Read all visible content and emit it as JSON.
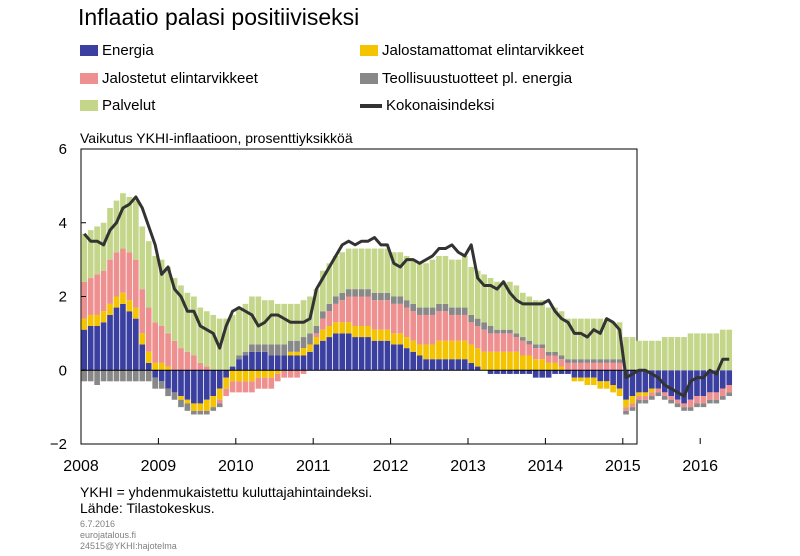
{
  "chart_data": {
    "type": "bar",
    "title": "Inflaatio palasi positiiviseksi",
    "subtitle": "Vaikutus YKHI-inflaatioon, prosenttiyksikköä",
    "ylim": [
      -2,
      6
    ],
    "yticks": [
      "6",
      "4",
      "2",
      "0",
      "−2"
    ],
    "xticks": [
      "2008",
      "2009",
      "2010",
      "2011",
      "2012",
      "2013",
      "2014",
      "2015",
      "2016"
    ],
    "months": [
      "2008-01",
      "2008-02",
      "2008-03",
      "2008-04",
      "2008-05",
      "2008-06",
      "2008-07",
      "2008-08",
      "2008-09",
      "2008-10",
      "2008-11",
      "2008-12",
      "2009-01",
      "2009-02",
      "2009-03",
      "2009-04",
      "2009-05",
      "2009-06",
      "2009-07",
      "2009-08",
      "2009-09",
      "2009-10",
      "2009-11",
      "2009-12",
      "2010-01",
      "2010-02",
      "2010-03",
      "2010-04",
      "2010-05",
      "2010-06",
      "2010-07",
      "2010-08",
      "2010-09",
      "2010-10",
      "2010-11",
      "2010-12",
      "2011-01",
      "2011-02",
      "2011-03",
      "2011-04",
      "2011-05",
      "2011-06",
      "2011-07",
      "2011-08",
      "2011-09",
      "2011-10",
      "2011-11",
      "2011-12",
      "2012-01",
      "2012-02",
      "2012-03",
      "2012-04",
      "2012-05",
      "2012-06",
      "2012-07",
      "2012-08",
      "2012-09",
      "2012-10",
      "2012-11",
      "2012-12",
      "2013-01",
      "2013-02",
      "2013-03",
      "2013-04",
      "2013-05",
      "2013-06",
      "2013-07",
      "2013-08",
      "2013-09",
      "2013-10",
      "2013-11",
      "2013-12",
      "2014-01",
      "2014-02",
      "2014-03",
      "2014-04",
      "2014-05",
      "2014-06",
      "2014-07",
      "2014-08",
      "2014-09",
      "2014-10",
      "2014-11",
      "2014-12",
      "2015-01",
      "2015-02",
      "2015-03",
      "2015-04",
      "2015-05",
      "2015-06",
      "2015-07",
      "2015-08",
      "2015-09",
      "2015-10",
      "2015-11",
      "2015-12",
      "2016-01",
      "2016-02",
      "2016-03",
      "2016-04",
      "2016-05"
    ],
    "series": [
      {
        "name": "Energia",
        "color": "#3b3fa0",
        "values": [
          1.1,
          1.2,
          1.2,
          1.3,
          1.5,
          1.7,
          1.8,
          1.6,
          1.4,
          0.7,
          0.2,
          -0.2,
          -0.3,
          -0.5,
          -0.6,
          -0.7,
          -0.8,
          -0.9,
          -0.9,
          -0.8,
          -0.7,
          -0.5,
          -0.2,
          0.1,
          0.3,
          0.4,
          0.5,
          0.5,
          0.5,
          0.4,
          0.4,
          0.4,
          0.4,
          0.4,
          0.4,
          0.5,
          0.7,
          0.8,
          0.9,
          1.0,
          1.0,
          1.0,
          0.9,
          0.9,
          0.9,
          0.8,
          0.8,
          0.8,
          0.7,
          0.7,
          0.6,
          0.5,
          0.4,
          0.3,
          0.3,
          0.3,
          0.3,
          0.3,
          0.3,
          0.3,
          0.2,
          0.1,
          0.0,
          -0.1,
          -0.1,
          -0.1,
          -0.1,
          -0.1,
          -0.1,
          -0.1,
          -0.2,
          -0.2,
          -0.2,
          -0.1,
          -0.1,
          -0.1,
          -0.2,
          -0.2,
          -0.2,
          -0.2,
          -0.3,
          -0.3,
          -0.4,
          -0.5,
          -0.8,
          -0.7,
          -0.6,
          -0.6,
          -0.5,
          -0.5,
          -0.6,
          -0.7,
          -0.8,
          -0.9,
          -0.8,
          -0.7,
          -0.7,
          -0.6,
          -0.6,
          -0.5,
          -0.4
        ]
      },
      {
        "name": "Jalostamattomat elintarvikkeet",
        "color": "#f5c400",
        "values": [
          0.3,
          0.3,
          0.3,
          0.3,
          0.3,
          0.3,
          0.3,
          0.3,
          0.3,
          0.3,
          0.3,
          0.2,
          0.2,
          0.1,
          0.0,
          -0.1,
          -0.1,
          -0.2,
          -0.2,
          -0.3,
          -0.3,
          -0.3,
          -0.3,
          -0.3,
          -0.3,
          -0.3,
          -0.3,
          -0.2,
          -0.2,
          -0.2,
          -0.1,
          0.0,
          0.1,
          0.1,
          0.2,
          0.2,
          0.2,
          0.3,
          0.3,
          0.3,
          0.3,
          0.3,
          0.3,
          0.3,
          0.3,
          0.3,
          0.3,
          0.3,
          0.3,
          0.3,
          0.3,
          0.3,
          0.3,
          0.4,
          0.4,
          0.5,
          0.5,
          0.5,
          0.5,
          0.5,
          0.5,
          0.5,
          0.5,
          0.5,
          0.5,
          0.5,
          0.5,
          0.5,
          0.4,
          0.4,
          0.3,
          0.3,
          0.2,
          0.2,
          0.1,
          0.0,
          -0.1,
          -0.1,
          -0.2,
          -0.2,
          -0.2,
          -0.2,
          -0.2,
          -0.2,
          -0.2,
          -0.2,
          -0.1,
          -0.1,
          -0.1,
          0.0,
          0.0,
          0.0,
          0.0,
          0.0,
          0.0,
          0.0,
          0.0,
          0.0,
          0.0,
          0.0,
          0.0
        ]
      },
      {
        "name": "Jalostetut elintarvikkeet",
        "color": "#ef9090",
        "values": [
          1.0,
          1.0,
          1.1,
          1.1,
          1.2,
          1.2,
          1.2,
          1.3,
          1.3,
          1.2,
          1.2,
          1.1,
          1.0,
          0.9,
          0.8,
          0.6,
          0.5,
          0.4,
          0.2,
          0.1,
          0.0,
          -0.1,
          -0.2,
          -0.3,
          -0.3,
          -0.3,
          -0.3,
          -0.3,
          -0.3,
          -0.3,
          -0.2,
          -0.2,
          -0.2,
          -0.2,
          -0.1,
          0.0,
          0.1,
          0.3,
          0.4,
          0.5,
          0.6,
          0.7,
          0.8,
          0.8,
          0.8,
          0.8,
          0.8,
          0.8,
          0.8,
          0.8,
          0.8,
          0.8,
          0.8,
          0.8,
          0.8,
          0.8,
          0.8,
          0.7,
          0.7,
          0.7,
          0.6,
          0.6,
          0.6,
          0.5,
          0.5,
          0.5,
          0.5,
          0.4,
          0.4,
          0.3,
          0.3,
          0.3,
          0.2,
          0.2,
          0.2,
          0.2,
          0.2,
          0.2,
          0.2,
          0.2,
          0.2,
          0.2,
          0.2,
          0.2,
          -0.1,
          -0.1,
          -0.1,
          -0.1,
          -0.1,
          -0.1,
          -0.1,
          -0.1,
          -0.1,
          -0.1,
          -0.2,
          -0.2,
          -0.2,
          -0.2,
          -0.2,
          -0.2,
          -0.2
        ]
      },
      {
        "name": "Teollisuustuotteet pl. energia",
        "color": "#888888",
        "values": [
          -0.3,
          -0.3,
          -0.4,
          -0.3,
          -0.3,
          -0.3,
          -0.3,
          -0.3,
          -0.3,
          -0.3,
          -0.3,
          -0.3,
          -0.2,
          -0.2,
          -0.2,
          -0.2,
          -0.2,
          -0.1,
          -0.1,
          -0.1,
          -0.1,
          -0.1,
          0.0,
          0.0,
          0.1,
          0.1,
          0.2,
          0.2,
          0.2,
          0.3,
          0.3,
          0.3,
          0.3,
          0.3,
          0.3,
          0.3,
          0.2,
          0.2,
          0.2,
          0.2,
          0.2,
          0.2,
          0.2,
          0.2,
          0.2,
          0.2,
          0.2,
          0.2,
          0.2,
          0.2,
          0.2,
          0.2,
          0.2,
          0.2,
          0.2,
          0.2,
          0.2,
          0.2,
          0.2,
          0.2,
          0.2,
          0.2,
          0.2,
          0.2,
          0.1,
          0.1,
          0.1,
          0.1,
          0.1,
          0.1,
          0.1,
          0.1,
          0.1,
          0.1,
          0.1,
          0.1,
          0.1,
          0.1,
          0.1,
          0.1,
          0.1,
          0.1,
          0.1,
          0.1,
          -0.1,
          -0.1,
          -0.1,
          -0.1,
          -0.1,
          -0.1,
          -0.1,
          -0.1,
          -0.1,
          -0.1,
          -0.1,
          -0.1,
          -0.1,
          -0.1,
          -0.1,
          -0.1,
          -0.1
        ]
      },
      {
        "name": "Palvelut",
        "color": "#c3d68a",
        "values": [
          1.3,
          1.3,
          1.3,
          1.3,
          1.4,
          1.4,
          1.5,
          1.5,
          1.6,
          1.7,
          1.8,
          1.8,
          1.8,
          1.8,
          1.7,
          1.7,
          1.6,
          1.6,
          1.5,
          1.5,
          1.5,
          1.4,
          1.4,
          1.4,
          1.3,
          1.3,
          1.3,
          1.3,
          1.2,
          1.2,
          1.1,
          1.1,
          1.0,
          1.0,
          1.0,
          1.0,
          1.0,
          1.1,
          1.1,
          1.1,
          1.1,
          1.1,
          1.1,
          1.1,
          1.1,
          1.2,
          1.2,
          1.2,
          1.2,
          1.2,
          1.2,
          1.2,
          1.2,
          1.2,
          1.3,
          1.3,
          1.3,
          1.3,
          1.3,
          1.4,
          1.3,
          1.3,
          1.3,
          1.3,
          1.3,
          1.3,
          1.3,
          1.3,
          1.2,
          1.2,
          1.2,
          1.2,
          1.2,
          1.2,
          1.2,
          1.1,
          1.1,
          1.1,
          1.1,
          1.1,
          1.1,
          1.1,
          1.0,
          1.0,
          0.9,
          0.9,
          0.8,
          0.8,
          0.8,
          0.8,
          0.9,
          0.9,
          0.9,
          0.9,
          1.0,
          1.0,
          1.0,
          1.0,
          1.0,
          1.1,
          1.1
        ]
      },
      {
        "name": "Kokonaisindeksi",
        "color": "#333333",
        "type": "line",
        "values": [
          3.7,
          3.5,
          3.5,
          3.4,
          3.8,
          4.0,
          4.4,
          4.5,
          4.7,
          4.4,
          3.9,
          3.4,
          2.6,
          2.8,
          2.2,
          2.0,
          1.6,
          1.6,
          1.2,
          1.1,
          1.0,
          0.6,
          1.2,
          1.6,
          1.7,
          1.6,
          1.5,
          1.2,
          1.3,
          1.5,
          1.5,
          1.4,
          1.3,
          1.3,
          1.3,
          1.4,
          2.2,
          2.5,
          2.8,
          3.1,
          3.4,
          3.5,
          3.4,
          3.5,
          3.5,
          3.6,
          3.4,
          3.4,
          2.9,
          2.8,
          3.0,
          3.0,
          2.9,
          3.0,
          3.1,
          3.3,
          3.3,
          3.4,
          3.2,
          3.1,
          3.4,
          2.5,
          2.3,
          2.3,
          2.2,
          2.4,
          2.1,
          1.9,
          1.8,
          1.8,
          1.8,
          1.8,
          1.9,
          1.6,
          1.4,
          1.3,
          1.0,
          1.0,
          0.9,
          1.1,
          1.0,
          1.4,
          1.3,
          1.1,
          -0.2,
          -0.1,
          0.0,
          0.0,
          -0.1,
          -0.2,
          -0.4,
          -0.5,
          -0.6,
          -0.7,
          -0.3,
          -0.2,
          -0.2,
          0.0,
          -0.1,
          0.3,
          0.3
        ]
      }
    ]
  },
  "legend": {
    "energia": "Energia",
    "jalostamattomat": "Jalostamattomat elintarvikkeet",
    "jalostetut": "Jalostetut elintarvikkeet",
    "teollisuus": "Teollisuustuotteet pl. energia",
    "palvelut": "Palvelut",
    "kokonais": "Kokonaisindeksi"
  },
  "footer": {
    "note1": "YKHI = yhdenmukaistettu kuluttajahintaindeksi.",
    "note2": "Lähde: Tilastokeskus.",
    "date": "6.7.2016",
    "site": "eurojatalous.fi",
    "code": "24515@YKHI:hajotelma"
  }
}
